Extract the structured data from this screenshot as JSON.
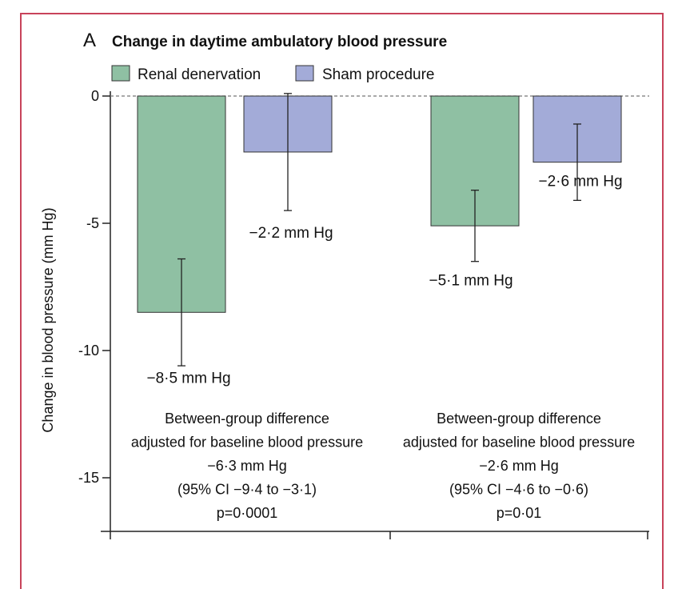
{
  "colors": {
    "frame": "#c8435a",
    "renal": "#8fc0a3",
    "sham": "#a3abd8",
    "axis": "#222222",
    "zero_line": "#777777"
  },
  "chart_data": {
    "type": "bar",
    "panel": "A",
    "title": "Change in daytime ambulatory blood pressure",
    "ylabel": "Change in blood pressure (mm Hg)",
    "xlabel": "",
    "ylim": [
      -17,
      0
    ],
    "yticks": [
      0,
      -5,
      -10,
      -15
    ],
    "ytick_labels": [
      "0",
      "-5",
      "-10",
      "-15"
    ],
    "legend_position": "top-left",
    "grid": false,
    "groups": [
      {
        "bars": [
          {
            "series": "Renal denervation",
            "value": -8.5,
            "ci_low": -10.6,
            "ci_high": -6.4,
            "label": "−8·5 mm Hg"
          },
          {
            "series": "Sham procedure",
            "value": -2.2,
            "ci_low": -4.5,
            "ci_high": 0.1,
            "label": "−2·2 mm Hg"
          }
        ],
        "note": [
          "Between-group difference",
          "adjusted for baseline blood pressure",
          "−6·3 mm Hg",
          "(95% CI −9·4 to −3·1)",
          "p=0·0001"
        ]
      },
      {
        "bars": [
          {
            "series": "Renal denervation",
            "value": -5.1,
            "ci_low": -6.5,
            "ci_high": -3.7,
            "label": "−5·1 mm Hg"
          },
          {
            "series": "Sham procedure",
            "value": -2.6,
            "ci_low": -4.1,
            "ci_high": -1.1,
            "label": "−2·6 mm Hg"
          }
        ],
        "note": [
          "Between-group difference",
          "adjusted for baseline blood pressure",
          "−2·6 mm Hg",
          "(95% CI −4·6 to −0·6)",
          "p=0·01"
        ]
      }
    ],
    "series": [
      {
        "name": "Renal denervation",
        "color": "#8fc0a3"
      },
      {
        "name": "Sham procedure",
        "color": "#a3abd8"
      }
    ]
  }
}
